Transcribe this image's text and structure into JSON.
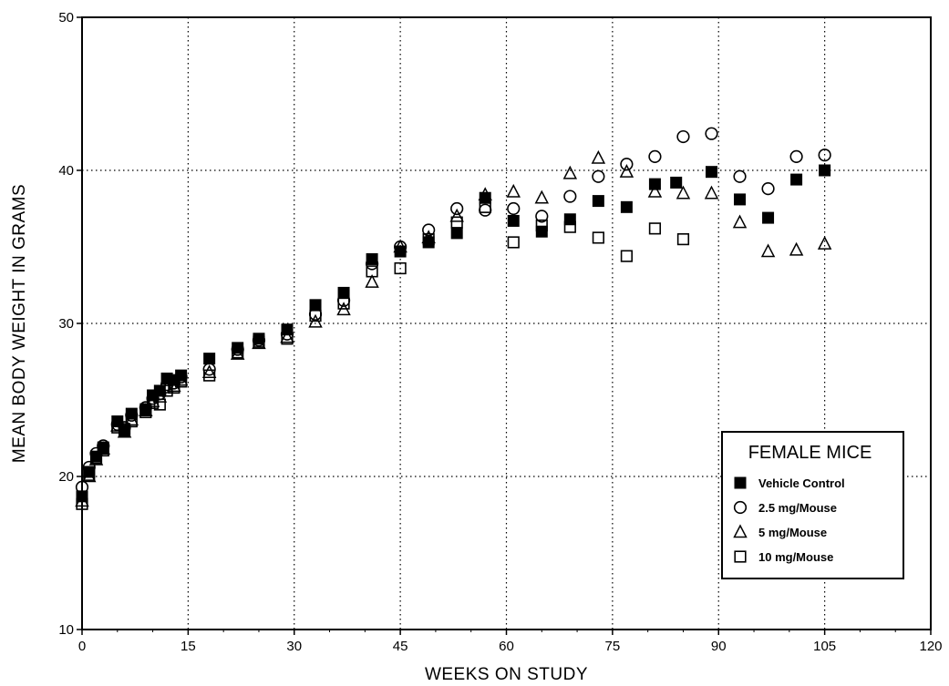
{
  "chart_data": {
    "type": "scatter",
    "title": "",
    "xlabel": "WEEKS ON STUDY",
    "ylabel": "MEAN BODY WEIGHT IN GRAMS",
    "xlim": [
      0,
      120
    ],
    "ylim": [
      10,
      50
    ],
    "xticks": [
      0,
      15,
      30,
      45,
      60,
      75,
      90,
      105,
      120
    ],
    "yticks": [
      10,
      20,
      30,
      40,
      50
    ],
    "grid": "dotted",
    "legend": {
      "title": "FEMALE MICE",
      "placement": "lower-right"
    },
    "series": [
      {
        "name": "Vehicle Control",
        "marker": "filled-square",
        "x": [
          0,
          1,
          2,
          3,
          5,
          6,
          7,
          9,
          10,
          11,
          12,
          13,
          14,
          18,
          22,
          25,
          29,
          33,
          37,
          41,
          45,
          49,
          53,
          57,
          61,
          65,
          69,
          73,
          77,
          81,
          84,
          89,
          93,
          97,
          101,
          105
        ],
        "y": [
          18.7,
          20.3,
          21.3,
          21.9,
          23.6,
          23.0,
          24.1,
          24.4,
          25.3,
          25.6,
          26.4,
          26.3,
          26.6,
          27.7,
          28.4,
          29.0,
          29.6,
          31.2,
          32.0,
          34.2,
          34.7,
          35.3,
          35.9,
          38.2,
          36.7,
          36.0,
          36.8,
          38.0,
          37.6,
          39.1,
          39.2,
          39.9,
          38.1,
          36.9,
          39.4,
          40.0
        ]
      },
      {
        "name": "2.5 mg/Mouse",
        "marker": "open-circle",
        "x": [
          0,
          1,
          2,
          3,
          5,
          6,
          7,
          9,
          10,
          11,
          12,
          13,
          14,
          18,
          22,
          25,
          29,
          33,
          37,
          41,
          45,
          49,
          53,
          57,
          61,
          65,
          69,
          73,
          77,
          81,
          85,
          89,
          93,
          97,
          101,
          105
        ],
        "y": [
          19.3,
          20.6,
          21.5,
          22.0,
          23.4,
          23.2,
          24.0,
          24.5,
          25.1,
          25.4,
          26.0,
          26.1,
          26.5,
          27.0,
          28.3,
          28.9,
          29.3,
          30.6,
          31.5,
          33.9,
          35.0,
          36.1,
          37.5,
          37.4,
          37.5,
          37.0,
          38.3,
          39.6,
          40.4,
          40.9,
          42.2,
          42.4,
          39.6,
          38.8,
          40.9,
          41.0
        ]
      },
      {
        "name": "5 mg/Mouse",
        "marker": "open-triangle",
        "x": [
          0,
          1,
          2,
          3,
          5,
          6,
          7,
          9,
          10,
          11,
          12,
          13,
          14,
          18,
          22,
          25,
          29,
          33,
          37,
          41,
          45,
          49,
          53,
          57,
          61,
          65,
          69,
          73,
          77,
          81,
          85,
          89,
          93,
          97,
          101,
          105
        ],
        "y": [
          18.4,
          20.0,
          21.1,
          21.8,
          23.3,
          22.9,
          23.7,
          24.3,
          24.9,
          25.2,
          25.8,
          25.9,
          26.3,
          26.8,
          28.0,
          28.7,
          29.1,
          30.1,
          30.9,
          32.7,
          35.0,
          35.6,
          37.0,
          38.4,
          38.6,
          38.2,
          39.8,
          40.8,
          39.9,
          38.6,
          38.5,
          38.5,
          36.6,
          34.7,
          34.8,
          35.2
        ]
      },
      {
        "name": "10 mg/Mouse",
        "marker": "open-square",
        "x": [
          0,
          1,
          2,
          3,
          5,
          6,
          7,
          9,
          10,
          11,
          12,
          13,
          14,
          18,
          22,
          25,
          29,
          33,
          37,
          41,
          45,
          49,
          53,
          57,
          61,
          65,
          69,
          73,
          77,
          81,
          85
        ],
        "y": [
          18.2,
          20.1,
          21.2,
          21.7,
          23.2,
          23.1,
          23.6,
          24.2,
          24.8,
          24.7,
          25.6,
          25.8,
          26.2,
          26.6,
          28.1,
          28.8,
          29.0,
          30.5,
          31.3,
          33.4,
          33.6,
          35.5,
          36.6,
          37.6,
          35.3,
          36.4,
          36.3,
          35.6,
          34.4,
          36.2,
          35.5
        ]
      }
    ]
  }
}
